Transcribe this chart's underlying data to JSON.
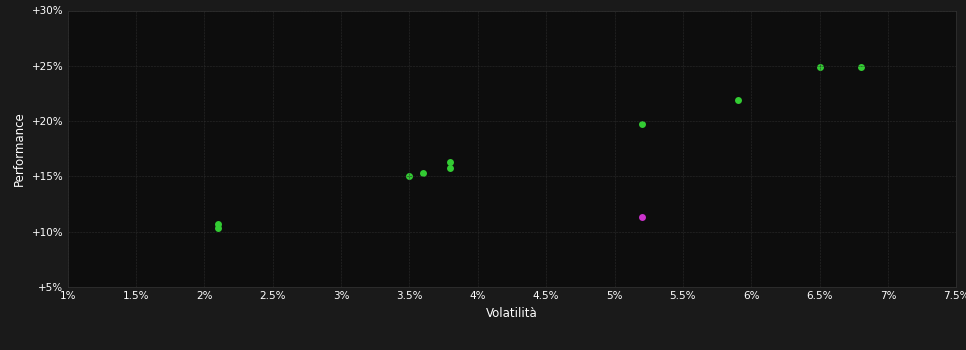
{
  "background_color": "#1a1a1a",
  "plot_bg_color": "#0d0d0d",
  "grid_color": "#2d2d2d",
  "xlabel": "Volatilità",
  "ylabel": "Performance",
  "xlim": [
    0.01,
    0.075
  ],
  "ylim": [
    0.05,
    0.3
  ],
  "xticks": [
    0.01,
    0.015,
    0.02,
    0.025,
    0.03,
    0.035,
    0.04,
    0.045,
    0.05,
    0.055,
    0.06,
    0.065,
    0.07,
    0.075
  ],
  "yticks": [
    0.05,
    0.1,
    0.15,
    0.2,
    0.25,
    0.3
  ],
  "xtick_labels": [
    "1%",
    "1.5%",
    "2%",
    "2.5%",
    "3%",
    "3.5%",
    "4%",
    "4.5%",
    "5%",
    "5.5%",
    "6%",
    "6.5%",
    "7%",
    "7.5%"
  ],
  "ytick_labels": [
    "+5%",
    "+10%",
    "+15%",
    "+20%",
    "+25%",
    "+30%"
  ],
  "green_points": [
    [
      0.021,
      0.107
    ],
    [
      0.021,
      0.103
    ],
    [
      0.035,
      0.15
    ],
    [
      0.036,
      0.153
    ],
    [
      0.038,
      0.158
    ],
    [
      0.038,
      0.163
    ],
    [
      0.052,
      0.197
    ],
    [
      0.059,
      0.219
    ],
    [
      0.065,
      0.249
    ],
    [
      0.068,
      0.249
    ]
  ],
  "magenta_points": [
    [
      0.052,
      0.113
    ]
  ],
  "green_color": "#33cc33",
  "magenta_color": "#cc33cc",
  "marker_size": 5,
  "tick_label_color": "#ffffff",
  "axis_label_color": "#ffffff",
  "grid_alpha": 1.0,
  "grid_linewidth": 0.4,
  "spine_color": "#333333",
  "fig_width": 9.66,
  "fig_height": 3.5
}
